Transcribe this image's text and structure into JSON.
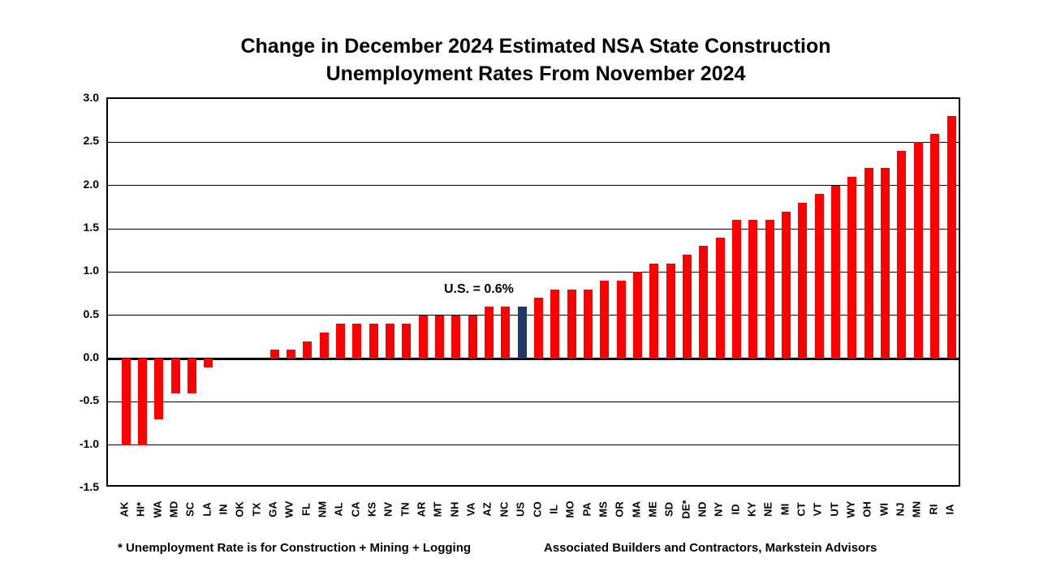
{
  "title": {
    "line1": "Change in December 2024 Estimated NSA State Construction",
    "line2": "Unemployment Rates From November 2024"
  },
  "annotation": {
    "us_label": "U.S. = 0.6%"
  },
  "footer": {
    "note": "* Unemployment Rate is for Construction + Mining + Logging",
    "source": "Associated Builders and Contractors, Markstein Advisors"
  },
  "colors": {
    "bar_red": "#FF0000",
    "us_bar_navy": "#1F3864",
    "text": "#000000",
    "background": "#FFFFFF",
    "gridline": "#000000"
  },
  "chart_data": {
    "type": "bar",
    "title": "Change in December 2024 Estimated NSA State Construction Unemployment Rates From November 2024",
    "xlabel": "",
    "ylabel": "",
    "ylim": [
      -1.5,
      3.0
    ],
    "grid": true,
    "legend": "none",
    "yticks": [
      "3.0",
      "2.5",
      "2.0",
      "1.5",
      "1.0",
      "0.5",
      "0.0",
      "-0.5",
      "-1.0",
      "-1.5"
    ],
    "highlight_category": "US",
    "categories": [
      "AK",
      "HI*",
      "WA",
      "MD",
      "SC",
      "LA",
      "IN",
      "OK",
      "TX",
      "GA",
      "WV",
      "FL",
      "NM",
      "AL",
      "CA",
      "KS",
      "NV",
      "TN",
      "AR",
      "MT",
      "NH",
      "VA",
      "AZ",
      "NC",
      "US",
      "CO",
      "IL",
      "MO",
      "PA",
      "MS",
      "OR",
      "MA",
      "ME",
      "SD",
      "DE*",
      "ND",
      "NY",
      "ID",
      "KY",
      "NE",
      "MI",
      "CT",
      "VT",
      "UT",
      "WY",
      "OH",
      "WI",
      "NJ",
      "MN",
      "RI",
      "IA"
    ],
    "values": [
      -1.0,
      -1.0,
      -0.7,
      -0.4,
      -0.4,
      -0.1,
      0.0,
      0.0,
      0.0,
      0.1,
      0.1,
      0.2,
      0.3,
      0.4,
      0.4,
      0.4,
      0.4,
      0.4,
      0.5,
      0.5,
      0.5,
      0.5,
      0.6,
      0.6,
      0.6,
      0.7,
      0.8,
      0.8,
      0.8,
      0.9,
      0.9,
      1.0,
      1.1,
      1.1,
      1.2,
      1.3,
      1.4,
      1.6,
      1.6,
      1.6,
      1.7,
      1.8,
      1.9,
      2.0,
      2.1,
      2.2,
      2.2,
      2.4,
      2.5,
      2.6,
      2.8
    ]
  }
}
